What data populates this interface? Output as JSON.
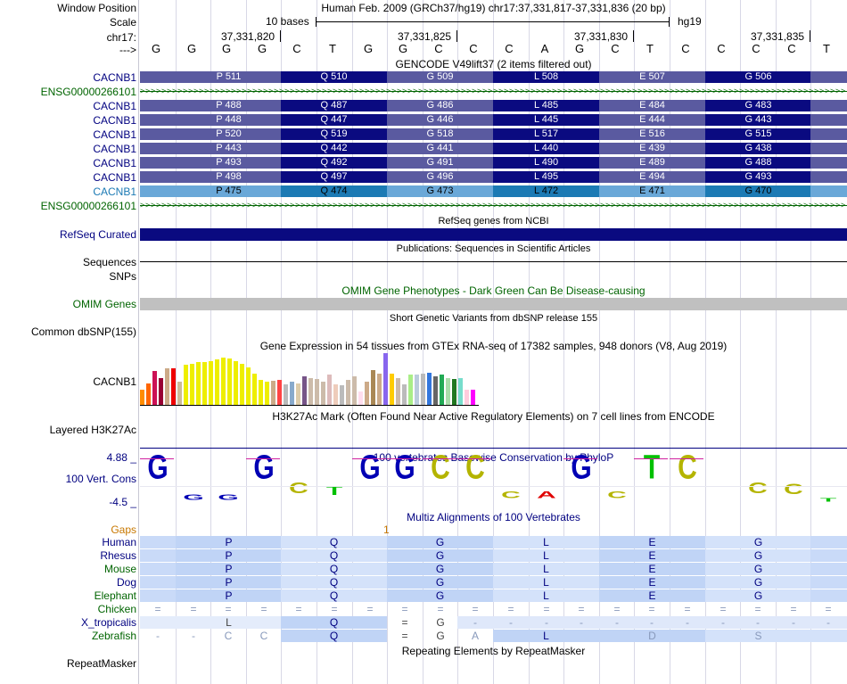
{
  "header": {
    "window_label": "Window Position",
    "window_value": "Human Feb. 2009 (GRCh37/hg19)   chr17:37,331,817-37,331,836 (20 bp)",
    "scale_label": "Scale",
    "scale_text": "10 bases",
    "scale_db": "hg19",
    "chr_label": "chr17:",
    "positions": [
      "37,331,820",
      "37,331,825",
      "37,331,830",
      "37,331,835"
    ],
    "strand_label": "--->",
    "bases": [
      "G",
      "G",
      "G",
      "G",
      "C",
      "T",
      "G",
      "G",
      "C",
      "C",
      "C",
      "A",
      "G",
      "C",
      "T",
      "C",
      "C",
      "C",
      "C",
      "T"
    ]
  },
  "gencode": {
    "title": "GENCODE V49lift37 (2 items filtered out)",
    "rows": [
      {
        "label": "CACNB1",
        "kind": "cds",
        "aa": [
          "P 511",
          "Q 510",
          "G 509",
          "L 508",
          "E 507",
          "G 506"
        ]
      },
      {
        "label": "ENSG00000266101",
        "kind": "nc",
        "aa": []
      },
      {
        "label": "CACNB1",
        "kind": "cds",
        "aa": [
          "P 488",
          "Q 487",
          "G 486",
          "L 485",
          "E 484",
          "G 483"
        ]
      },
      {
        "label": "CACNB1",
        "kind": "cds",
        "aa": [
          "P 448",
          "Q 447",
          "G 446",
          "L 445",
          "E 444",
          "G 443"
        ]
      },
      {
        "label": "CACNB1",
        "kind": "cds",
        "aa": [
          "P 520",
          "Q 519",
          "G 518",
          "L 517",
          "E 516",
          "G 515"
        ]
      },
      {
        "label": "CACNB1",
        "kind": "cds",
        "aa": [
          "P 443",
          "Q 442",
          "G 441",
          "L 440",
          "E 439",
          "G 438"
        ]
      },
      {
        "label": "CACNB1",
        "kind": "cds",
        "aa": [
          "P 493",
          "Q 492",
          "G 491",
          "L 490",
          "E 489",
          "G 488"
        ]
      },
      {
        "label": "CACNB1",
        "kind": "cds",
        "aa": [
          "P 498",
          "Q 497",
          "G 496",
          "L 495",
          "E 494",
          "G 493"
        ]
      },
      {
        "label": "CACNB1",
        "kind": "cds_light",
        "aa": [
          "P 475",
          "Q 474",
          "G 473",
          "L 472",
          "E 471",
          "G 470"
        ]
      },
      {
        "label": "ENSG00000266101",
        "kind": "nc",
        "aa": []
      }
    ]
  },
  "refseq": {
    "title": "RefSeq genes from NCBI",
    "label": "RefSeq Curated"
  },
  "pubs": {
    "title": "Publications: Sequences in Scientific Articles",
    "label1": "Sequences",
    "label2": "SNPs"
  },
  "omim": {
    "title": "OMIM Gene Phenotypes - Dark Green Can Be Disease-causing",
    "label": "OMIM Genes"
  },
  "dbsnp": {
    "title": "Short Genetic Variants from dbSNP release 155",
    "label": "Common dbSNP(155)"
  },
  "gtex": {
    "title": "Gene Expression in 54 tissues from GTEx RNA-seq of 17382 samples, 948 donors (V8, Aug 2019)",
    "label": "CACNB1",
    "bars": [
      {
        "v": 0.3,
        "c": "#ff8c00"
      },
      {
        "v": 0.42,
        "c": "#ff6600"
      },
      {
        "v": 0.65,
        "c": "#cc1155"
      },
      {
        "v": 0.52,
        "c": "#990033"
      },
      {
        "v": 0.7,
        "c": "#ccaa88"
      },
      {
        "v": 0.7,
        "c": "#ee0000"
      },
      {
        "v": 0.45,
        "c": "#ccbb99"
      },
      {
        "v": 0.78,
        "c": "#eeee00"
      },
      {
        "v": 0.8,
        "c": "#eeee00"
      },
      {
        "v": 0.82,
        "c": "#eeee00"
      },
      {
        "v": 0.83,
        "c": "#eeee00"
      },
      {
        "v": 0.84,
        "c": "#eeee00"
      },
      {
        "v": 0.88,
        "c": "#eeee00"
      },
      {
        "v": 0.92,
        "c": "#eeee00"
      },
      {
        "v": 0.9,
        "c": "#eeee00"
      },
      {
        "v": 0.84,
        "c": "#eeee00"
      },
      {
        "v": 0.8,
        "c": "#eeee00"
      },
      {
        "v": 0.72,
        "c": "#eeee00"
      },
      {
        "v": 0.6,
        "c": "#eeee00"
      },
      {
        "v": 0.48,
        "c": "#eeee00"
      },
      {
        "v": 0.45,
        "c": "#eeee00"
      },
      {
        "v": 0.46,
        "c": "#ccaa88"
      },
      {
        "v": 0.48,
        "c": "#ff4444"
      },
      {
        "v": 0.4,
        "c": "#bbbbbb"
      },
      {
        "v": 0.45,
        "c": "#88aacc"
      },
      {
        "v": 0.42,
        "c": "#ddccaa"
      },
      {
        "v": 0.55,
        "c": "#775588"
      },
      {
        "v": 0.52,
        "c": "#ccbbaa"
      },
      {
        "v": 0.5,
        "c": "#ccbbaa"
      },
      {
        "v": 0.45,
        "c": "#ccbbaa"
      },
      {
        "v": 0.58,
        "c": "#ddbbbb"
      },
      {
        "v": 0.4,
        "c": "#eeccbb"
      },
      {
        "v": 0.38,
        "c": "#bbbbbb"
      },
      {
        "v": 0.48,
        "c": "#ccbbaa"
      },
      {
        "v": 0.55,
        "c": "#ccbbaa"
      },
      {
        "v": 0.25,
        "c": "#ffddee"
      },
      {
        "v": 0.45,
        "c": "#ccaa88"
      },
      {
        "v": 0.68,
        "c": "#aa8855"
      },
      {
        "v": 0.6,
        "c": "#ccaa88"
      },
      {
        "v": 1.0,
        "c": "#8866ee"
      },
      {
        "v": 0.6,
        "c": "#ffcc00"
      },
      {
        "v": 0.52,
        "c": "#ccbbaa"
      },
      {
        "v": 0.4,
        "c": "#bbbbbb"
      },
      {
        "v": 0.58,
        "c": "#aaee88"
      },
      {
        "v": 0.58,
        "c": "#bbccdd"
      },
      {
        "v": 0.6,
        "c": "#bbbbbb"
      },
      {
        "v": 0.62,
        "c": "#3377dd"
      },
      {
        "v": 0.55,
        "c": "#666666"
      },
      {
        "v": 0.58,
        "c": "#22aa55"
      },
      {
        "v": 0.52,
        "c": "#aaddaa"
      },
      {
        "v": 0.5,
        "c": "#227722"
      },
      {
        "v": 0.52,
        "c": "#77ddcc"
      },
      {
        "v": 0.3,
        "c": "#ffccdd"
      },
      {
        "v": 0.3,
        "c": "#ff00ff"
      }
    ]
  },
  "h3k27ac": {
    "title": "H3K27Ac Mark (Often Found Near Active Regulatory Elements) on 7 cell lines from ENCODE",
    "label": "Layered H3K27Ac"
  },
  "cons": {
    "title": "100 vertebrates Basewise Conservation by PhyloP",
    "label": "100 Vert. Cons",
    "ymax": "4.88 _",
    "ymin": "-4.5 _",
    "letters": [
      {
        "b": "G",
        "h": 1.0
      },
      {
        "b": "G",
        "h": 0.22
      },
      {
        "b": "G",
        "h": 0.22
      },
      {
        "b": "G",
        "h": 1.0
      },
      {
        "b": "C",
        "h": 0.45
      },
      {
        "b": "T",
        "h": 0.4
      },
      {
        "b": "G",
        "h": 1.0
      },
      {
        "b": "G",
        "h": 1.0
      },
      {
        "b": "C",
        "h": 1.0
      },
      {
        "b": "C",
        "h": 1.0
      },
      {
        "b": "C",
        "h": 0.3
      },
      {
        "b": "A",
        "h": 0.3
      },
      {
        "b": "G",
        "h": 1.0
      },
      {
        "b": "C",
        "h": 0.3
      },
      {
        "b": "T",
        "h": 1.0
      },
      {
        "b": "C",
        "h": 1.0
      },
      {
        "b": "C",
        "h": 0.0
      },
      {
        "b": "C",
        "h": 0.45
      },
      {
        "b": "C",
        "h": 0.42
      },
      {
        "b": "T",
        "h": 0.12
      }
    ]
  },
  "multiz": {
    "title": "Multiz Alignments of 100 Vertebrates",
    "gaps_label": "Gaps",
    "gap_mark": "1",
    "species": [
      {
        "name": "Human",
        "color": "#000080",
        "cells": [
          "P",
          "Q",
          "G",
          "L",
          "E",
          "G"
        ]
      },
      {
        "name": "Rhesus",
        "color": "#000080",
        "cells": [
          "P",
          "Q",
          "G",
          "L",
          "E",
          "G"
        ]
      },
      {
        "name": "Mouse",
        "color": "#006400",
        "cells": [
          "P",
          "Q",
          "G",
          "L",
          "E",
          "G"
        ]
      },
      {
        "name": "Dog",
        "color": "#000080",
        "cells": [
          "P",
          "Q",
          "G",
          "L",
          "E",
          "G"
        ]
      },
      {
        "name": "Elephant",
        "color": "#006400",
        "cells": [
          "P",
          "Q",
          "G",
          "L",
          "E",
          "G"
        ]
      },
      {
        "name": "Chicken",
        "color": "#006400",
        "cells": [
          "=",
          "=",
          "=",
          "=",
          "=",
          "=",
          "=",
          "=",
          "=",
          "=",
          "=",
          "=",
          "=",
          "=",
          "=",
          "=",
          "=",
          "=",
          "=",
          "="
        ]
      },
      {
        "name": "X_tropicalis",
        "color": "#000080",
        "cells": [
          "L",
          "Q",
          "=",
          "G",
          "-",
          "-",
          "-",
          "-",
          "-",
          "-",
          "-",
          "-",
          "-",
          "-",
          "-",
          "-"
        ]
      },
      {
        "name": "Zebrafish",
        "color": "#006400",
        "cells": [
          "-",
          "-",
          "C",
          "C",
          "Q",
          "=",
          "G",
          "A",
          "L",
          "D",
          "S"
        ]
      }
    ]
  },
  "repeat": {
    "title": "Repeating Elements by RepeatMasker",
    "label": "RepeatMasker"
  },
  "colors": {
    "gene_dark": "#0a0a80",
    "gene_mid": "#5a5aa0",
    "gene_light": "#1c7ab4",
    "gene_light2": "#6aa8d8",
    "label_gene": "#000080",
    "label_ens": "#006400",
    "omim_fill": "#c0c0c0"
  }
}
